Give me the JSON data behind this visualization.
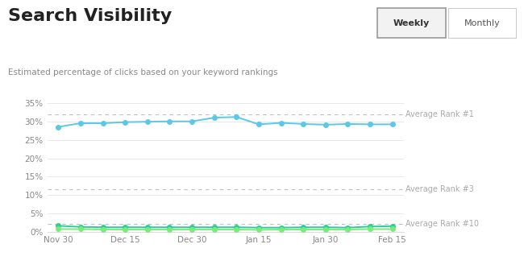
{
  "title": "Search Visibility",
  "subtitle": "Estimated percentage of clicks based on your keyword rankings",
  "bg_color": "#ffffff",
  "plot_bg_color": "#ffffff",
  "ylim": [
    0,
    37
  ],
  "yticks": [
    0,
    5,
    10,
    15,
    20,
    25,
    30,
    35
  ],
  "ytick_labels": [
    "0%",
    "5%",
    "10%",
    "15%",
    "20%",
    "25%",
    "30%",
    "35%"
  ],
  "xtick_labels": [
    "Nov 30",
    "Dec 15",
    "Dec 30",
    "Jan 15",
    "Jan 30",
    "Feb 15"
  ],
  "xtick_positions": [
    0,
    3,
    6,
    9,
    12,
    15
  ],
  "grid_color": "#e8e8e8",
  "hline_color": "#c0c0c0",
  "avg_rank1_y": 32.0,
  "avg_rank3_y": 11.5,
  "avg_rank10_y": 2.2,
  "avg_label_color": "#aaaaaa",
  "line1_color": "#5bc8e8",
  "line2_color": "#2ecc9a",
  "line3_color": "#7aeb7a",
  "line1_values": [
    28.5,
    29.5,
    29.5,
    29.8,
    29.9,
    30.0,
    30.0,
    31.0,
    31.2,
    29.2,
    29.6,
    29.3,
    29.1,
    29.3,
    29.2,
    29.2
  ],
  "line2_values": [
    1.7,
    1.4,
    1.3,
    1.3,
    1.3,
    1.3,
    1.3,
    1.3,
    1.3,
    1.2,
    1.2,
    1.3,
    1.3,
    1.2,
    1.5,
    1.6
  ],
  "line3_values": [
    0.8,
    0.8,
    0.7,
    0.7,
    0.7,
    0.7,
    0.7,
    0.7,
    0.7,
    0.6,
    0.7,
    0.7,
    0.7,
    0.7,
    0.8,
    0.8
  ],
  "x_positions": [
    0,
    1,
    2,
    3,
    4,
    5,
    6,
    7,
    8,
    9,
    10,
    11,
    12,
    13,
    14,
    15
  ],
  "marker_size": 4,
  "linewidth": 1.4,
  "title_fontsize": 16,
  "subtitle_fontsize": 7.5,
  "tick_fontsize": 7.5,
  "label_fontsize": 7,
  "button_weekly": "Weekly",
  "button_monthly": "Monthly"
}
